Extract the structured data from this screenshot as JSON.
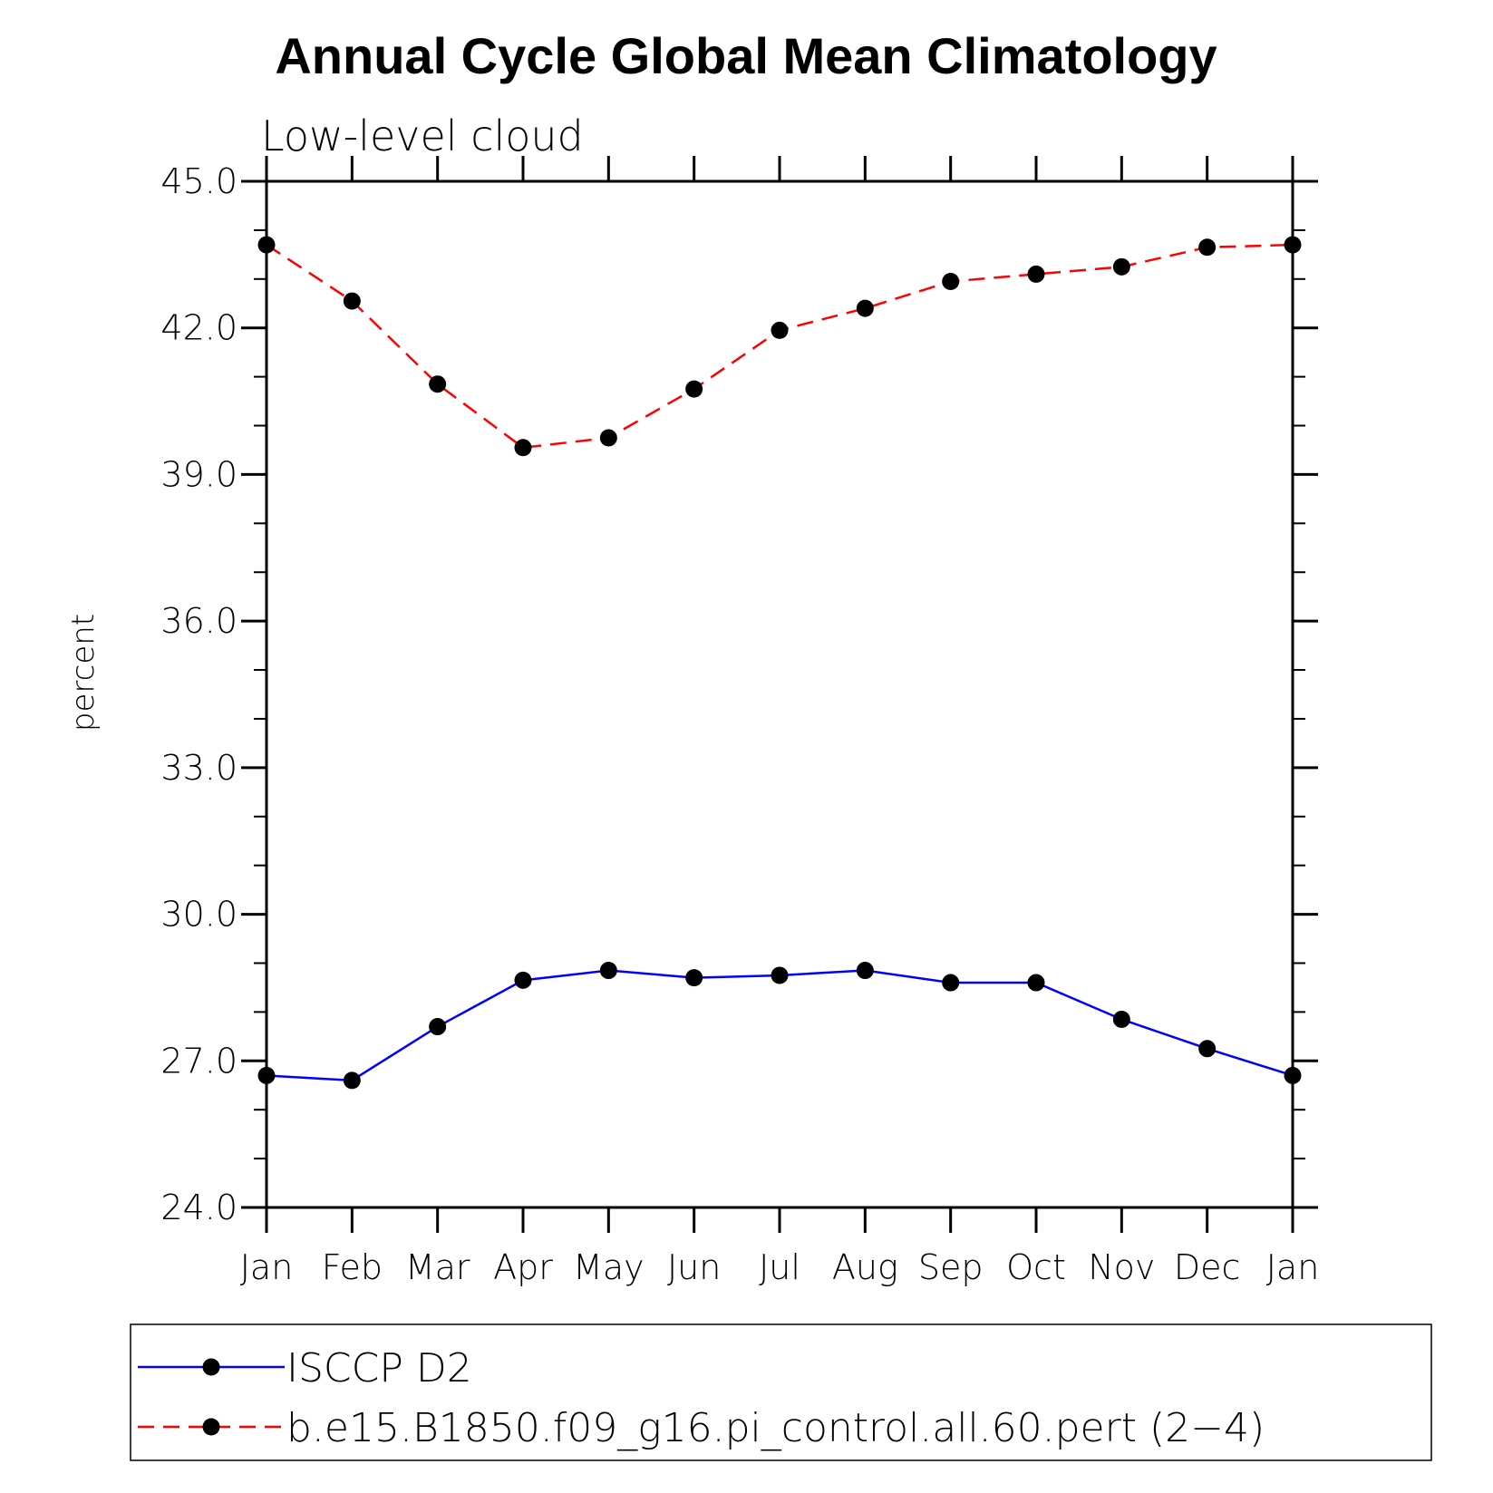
{
  "chart_data": {
    "type": "line",
    "title": "Annual Cycle Global Mean Climatology",
    "subtitle": "Low-level cloud",
    "xlabel": "",
    "ylabel": "percent",
    "ylim": [
      24.0,
      45.0
    ],
    "y_ticks": [
      "24.0",
      "27.0",
      "30.0",
      "33.0",
      "36.0",
      "39.0",
      "42.0",
      "45.0"
    ],
    "categories": [
      "Jan",
      "Feb",
      "Mar",
      "Apr",
      "May",
      "Jun",
      "Jul",
      "Aug",
      "Sep",
      "Oct",
      "Nov",
      "Dec",
      "Jan"
    ],
    "grid": false,
    "legend_position": "bottom",
    "series": [
      {
        "name": "ISCCP D2",
        "color": "#0000ff",
        "line_style": "solid",
        "marker": "filled-circle",
        "values": [
          26.7,
          26.6,
          27.7,
          28.65,
          28.85,
          28.7,
          28.75,
          28.85,
          28.6,
          28.6,
          27.85,
          27.25,
          26.7
        ]
      },
      {
        "name": "b.e15.B1850.f09_g16.pi_control.all.60.pert (2−4)",
        "color": "#ff0000",
        "line_style": "dashed",
        "marker": "filled-circle",
        "values": [
          43.7,
          42.55,
          40.85,
          39.55,
          39.75,
          40.75,
          41.95,
          42.4,
          42.95,
          43.1,
          43.25,
          43.65,
          43.7
        ]
      }
    ]
  }
}
